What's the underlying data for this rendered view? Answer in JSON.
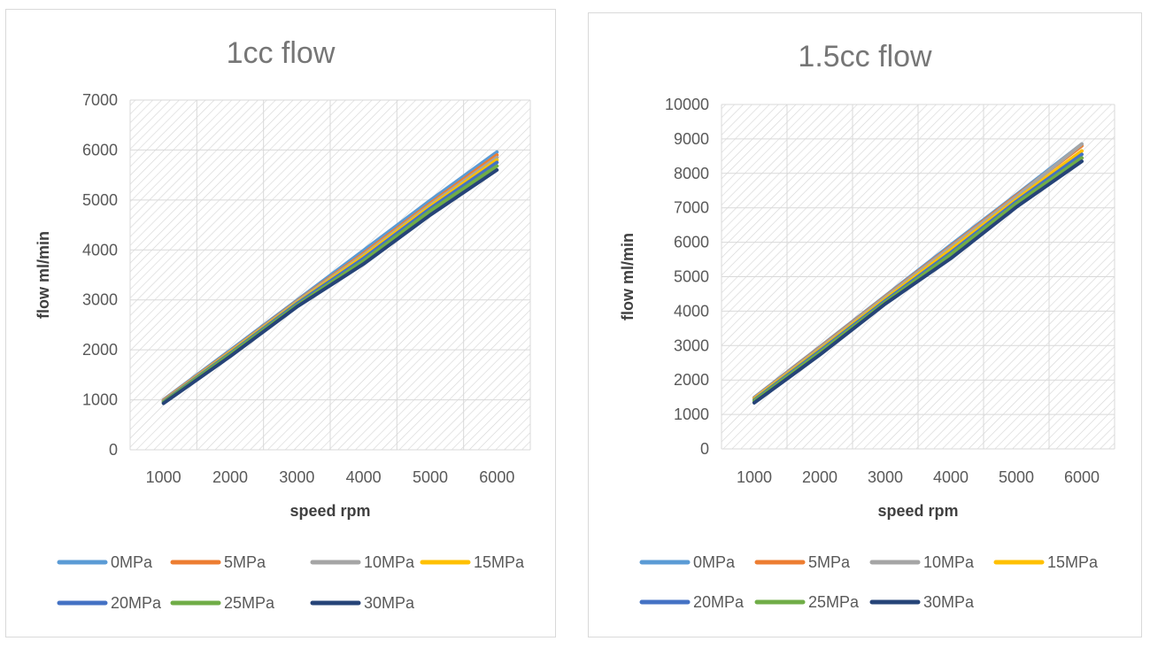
{
  "chart_data": [
    {
      "type": "line",
      "title": "1cc flow",
      "xlabel": "speed rpm",
      "ylabel": "flow ml/min",
      "x": [
        1000,
        2000,
        3000,
        4000,
        5000,
        6000
      ],
      "ylim": [
        0,
        7000
      ],
      "yticks": [
        0,
        1000,
        2000,
        3000,
        4000,
        5000,
        6000,
        7000
      ],
      "grid": true,
      "legend_position": "bottom",
      "series": [
        {
          "name": "0MPa",
          "color": "#5b9bd5",
          "values": [
            1000,
            1990,
            2990,
            3990,
            4990,
            5960
          ]
        },
        {
          "name": "5MPa",
          "color": "#ed7d31",
          "values": [
            990,
            1970,
            2970,
            3930,
            4930,
            5900
          ]
        },
        {
          "name": "10MPa",
          "color": "#a5a5a5",
          "values": [
            980,
            1960,
            2960,
            3900,
            4900,
            5850
          ]
        },
        {
          "name": "15MPa",
          "color": "#ffc000",
          "values": [
            970,
            1950,
            2940,
            3870,
            4870,
            5800
          ]
        },
        {
          "name": "20MPa",
          "color": "#4472c4",
          "values": [
            960,
            1930,
            2920,
            3830,
            4830,
            5750
          ]
        },
        {
          "name": "25MPa",
          "color": "#70ad47",
          "values": [
            950,
            1910,
            2890,
            3780,
            4780,
            5680
          ]
        },
        {
          "name": "30MPa",
          "color": "#264478",
          "values": [
            930,
            1870,
            2860,
            3720,
            4700,
            5600
          ]
        }
      ]
    },
    {
      "type": "line",
      "title": "1.5cc flow",
      "xlabel": "speed rpm",
      "ylabel": "flow ml/min",
      "x": [
        1000,
        2000,
        3000,
        4000,
        5000,
        6000
      ],
      "ylim": [
        0,
        10000
      ],
      "yticks": [
        0,
        1000,
        2000,
        3000,
        4000,
        5000,
        6000,
        7000,
        8000,
        9000,
        10000
      ],
      "grid": true,
      "legend_position": "bottom",
      "series": [
        {
          "name": "0MPa",
          "color": "#5b9bd5",
          "values": [
            1490,
            2960,
            4440,
            5920,
            7380,
            8850
          ]
        },
        {
          "name": "5MPa",
          "color": "#ed7d31",
          "values": [
            1480,
            2940,
            4420,
            5880,
            7350,
            8800
          ]
        },
        {
          "name": "10MPa",
          "color": "#a5a5a5",
          "values": [
            1470,
            2920,
            4400,
            5850,
            7320,
            8850
          ]
        },
        {
          "name": "15MPa",
          "color": "#ffc000",
          "values": [
            1450,
            2880,
            4350,
            5780,
            7240,
            8650
          ]
        },
        {
          "name": "20MPa",
          "color": "#4472c4",
          "values": [
            1420,
            2840,
            4300,
            5700,
            7180,
            8550
          ]
        },
        {
          "name": "25MPa",
          "color": "#70ad47",
          "values": [
            1390,
            2800,
            4260,
            5640,
            7120,
            8450
          ]
        },
        {
          "name": "30MPa",
          "color": "#264478",
          "values": [
            1340,
            2730,
            4210,
            5530,
            7020,
            8350
          ]
        }
      ]
    }
  ]
}
